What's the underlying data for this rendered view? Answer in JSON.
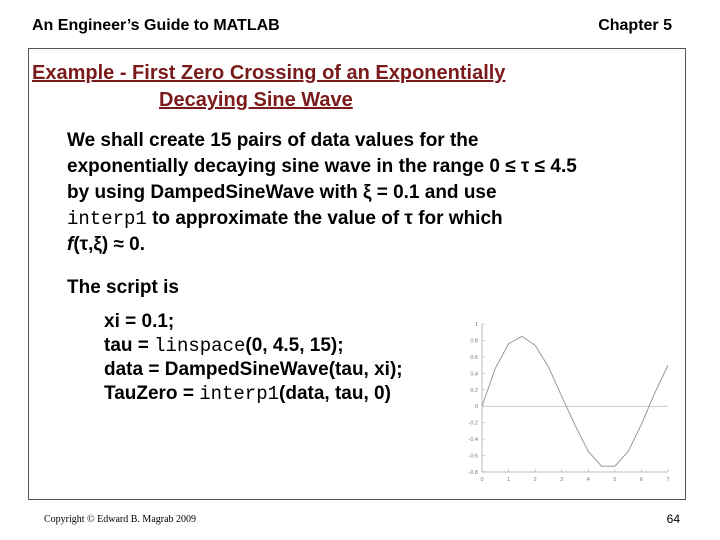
{
  "header": {
    "left": "An Engineer’s Guide to MATLAB",
    "right": "Chapter 5"
  },
  "title": {
    "line1": "Example - First Zero Crossing of an Exponentially",
    "line2": "Decaying Sine Wave"
  },
  "paragraph": {
    "p1": "We shall create 15 pairs of data values for the",
    "p2": "exponentially decaying sine wave in the range 0 ≤ τ ≤ 4.5",
    "p3": "by using DampedSineWave with ξ = 0.1 and use",
    "p4_code": "interp1",
    "p4_rest": " to approximate the value of τ for which",
    "p5_func": "f",
    "p5_rest": "(τ,ξ) ≈ 0."
  },
  "script_label": "The script is",
  "code": {
    "line1": "xi = 0.1;",
    "line2_a": "tau = ",
    "line2_fn": "linspace",
    "line2_b": "(0, 4.5, 15);",
    "line3": "data = DampedSineWave(tau, xi);",
    "line4_a": "TauZero = ",
    "line4_fn": "interp1",
    "line4_b": "(data, tau, 0)"
  },
  "chart_data": {
    "type": "line",
    "x_ticks": [
      "0",
      "1",
      "2",
      "3",
      "4",
      "5",
      "6",
      "7"
    ],
    "y_ticks": [
      "1",
      "0.8",
      "0.6",
      "0.4",
      "0.2",
      "0",
      "-0.2",
      "-0.4",
      "-0.6",
      "-0.8"
    ],
    "xlim": [
      0,
      7
    ],
    "ylim": [
      -0.8,
      1
    ],
    "zero_line": true,
    "series": [
      {
        "color": "#9a9a9a",
        "x": [
          0.0,
          0.5,
          1.0,
          1.5,
          2.0,
          2.5,
          3.0,
          3.5,
          4.0,
          4.5,
          5.0,
          5.5,
          6.0,
          6.5,
          7.0
        ],
        "y": [
          0.0,
          0.46,
          0.76,
          0.85,
          0.74,
          0.48,
          0.12,
          -0.23,
          -0.55,
          -0.73,
          -0.73,
          -0.55,
          -0.22,
          0.16,
          0.5
        ]
      }
    ]
  },
  "footer": {
    "left": "Copyright © Edward B. Magrab 2009",
    "right": "64"
  }
}
